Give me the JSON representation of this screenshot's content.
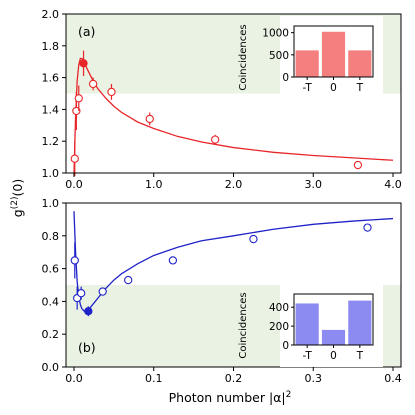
{
  "chart_data": [
    {
      "type": "scatter",
      "panel_label": "(a)",
      "xlabel": "",
      "ylabel": "g(2)(0)",
      "xlim": [
        -0.1,
        4.1
      ],
      "ylim": [
        1.0,
        2.0
      ],
      "xticks": [
        0.0,
        1.0,
        2.0,
        3.0,
        4.0
      ],
      "xtick_labels": [
        "0.0",
        "1.0",
        "2.0",
        "3.0",
        "4.0"
      ],
      "yticks": [
        1.0,
        1.2,
        1.4,
        1.6,
        1.8,
        2.0
      ],
      "ytick_labels": [
        "1.0",
        "1.2",
        "1.4",
        "1.6",
        "1.8",
        "2.0"
      ],
      "shaded_region": {
        "y_min": 1.5,
        "y_max": 2.0,
        "color": "#e9f2e3"
      },
      "color": "#e8262a",
      "points": [
        {
          "x": 0.01,
          "y": 1.09,
          "err": 0.11
        },
        {
          "x": 0.03,
          "y": 1.39,
          "err": 0.12
        },
        {
          "x": 0.06,
          "y": 1.47,
          "err": 0.08
        },
        {
          "x": 0.12,
          "y": 1.69,
          "err": 0.08,
          "filled": true
        },
        {
          "x": 0.24,
          "y": 1.56,
          "err": 0.04
        },
        {
          "x": 0.47,
          "y": 1.51,
          "err": 0.05
        },
        {
          "x": 0.95,
          "y": 1.34,
          "err": 0.04
        },
        {
          "x": 1.77,
          "y": 1.21,
          "err": 0.03
        },
        {
          "x": 3.56,
          "y": 1.05,
          "err": 0.02
        }
      ],
      "fit_curve": {
        "x": [
          0.0,
          0.02,
          0.04,
          0.06,
          0.08,
          0.1,
          0.13,
          0.16,
          0.2,
          0.25,
          0.3,
          0.4,
          0.5,
          0.6,
          0.8,
          1.0,
          1.3,
          1.6,
          2.0,
          2.5,
          3.0,
          3.5,
          4.0
        ],
        "y": [
          1.0,
          1.35,
          1.58,
          1.68,
          1.72,
          1.72,
          1.7,
          1.66,
          1.62,
          1.57,
          1.53,
          1.47,
          1.42,
          1.38,
          1.32,
          1.28,
          1.23,
          1.195,
          1.16,
          1.13,
          1.11,
          1.095,
          1.08
        ]
      },
      "inset": {
        "type": "bar",
        "categories": [
          "-T",
          "0",
          "T"
        ],
        "values": [
          600,
          1020,
          600
        ],
        "ylabel": "Coincidences",
        "yticks": [
          0,
          500,
          1000
        ],
        "ytick_labels": [
          "0",
          "500",
          "1000"
        ],
        "ylim": [
          0,
          1150
        ],
        "color": "#f47f7f"
      }
    },
    {
      "type": "scatter",
      "panel_label": "(b)",
      "xlabel": "Photon number |α|2",
      "ylabel": "g(2)(0)",
      "xlim": [
        -0.01,
        0.41
      ],
      "ylim": [
        0.0,
        1.0
      ],
      "xticks": [
        0.0,
        0.1,
        0.2,
        0.3,
        0.4
      ],
      "xtick_labels": [
        "0.0",
        "0.1",
        "0.2",
        "0.3",
        "0.4"
      ],
      "yticks": [
        0.0,
        0.2,
        0.4,
        0.6,
        0.8,
        1.0
      ],
      "ytick_labels": [
        "0.0",
        "0.2",
        "0.4",
        "0.6",
        "0.8",
        "1.0"
      ],
      "shaded_region": {
        "y_min": 0.0,
        "y_max": 0.5,
        "color": "#e9f2e3"
      },
      "color": "#1f23c9",
      "points": [
        {
          "x": 0.001,
          "y": 0.65,
          "err": 0.11
        },
        {
          "x": 0.004,
          "y": 0.42,
          "err": 0.07
        },
        {
          "x": 0.009,
          "y": 0.45,
          "err": 0.04
        },
        {
          "x": 0.018,
          "y": 0.34,
          "err": 0.03,
          "filled": true
        },
        {
          "x": 0.036,
          "y": 0.46,
          "err": 0.02
        },
        {
          "x": 0.068,
          "y": 0.53,
          "err": 0.015
        },
        {
          "x": 0.124,
          "y": 0.65,
          "err": 0.01
        },
        {
          "x": 0.225,
          "y": 0.78,
          "err": 0.01
        },
        {
          "x": 0.368,
          "y": 0.85,
          "err": 0.01
        }
      ],
      "fit_curve": {
        "x": [
          0.0,
          0.002,
          0.004,
          0.006,
          0.008,
          0.01,
          0.013,
          0.016,
          0.02,
          0.025,
          0.03,
          0.04,
          0.05,
          0.06,
          0.08,
          0.1,
          0.13,
          0.16,
          0.2,
          0.25,
          0.3,
          0.35,
          0.4
        ],
        "y": [
          0.95,
          0.7,
          0.52,
          0.43,
          0.38,
          0.355,
          0.34,
          0.345,
          0.36,
          0.39,
          0.42,
          0.48,
          0.53,
          0.57,
          0.63,
          0.68,
          0.73,
          0.77,
          0.8,
          0.84,
          0.87,
          0.89,
          0.905
        ]
      },
      "inset": {
        "type": "bar",
        "categories": [
          "-T",
          "0",
          "T"
        ],
        "values": [
          440,
          160,
          470
        ],
        "ylabel": "Coincidences",
        "yticks": [
          0,
          200,
          400
        ],
        "ytick_labels": [
          "0",
          "200",
          "400"
        ],
        "ylim": [
          0,
          540
        ],
        "color": "#8b8bf2"
      }
    }
  ]
}
